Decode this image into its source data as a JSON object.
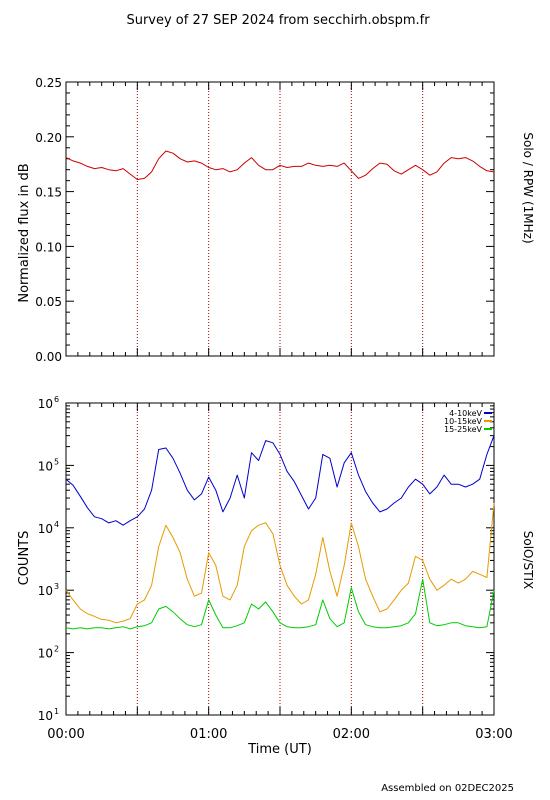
{
  "title": "Survey of 27 SEP 2024 from secchirh.obspm.fr",
  "footer": "Assembled on 02DEC2025",
  "chart_data": [
    {
      "type": "line",
      "ylabel": "Normalized flux in dB",
      "right_label": "Solo / RPW (1MHz)",
      "ylim": [
        0,
        0.25
      ],
      "yticks": [
        "0.00",
        "0.05",
        "0.10",
        "0.15",
        "0.20",
        "0.25"
      ],
      "ytick_values": [
        0,
        0.05,
        0.1,
        0.15,
        0.2,
        0.25
      ],
      "xlim_min": [
        0,
        180
      ],
      "vlines_min": [
        30,
        60,
        90,
        120,
        150
      ],
      "series": [
        {
          "color": "#cc0000",
          "x": [
            0,
            3,
            6,
            9,
            12,
            15,
            18,
            21,
            24,
            27,
            30,
            33,
            36,
            39,
            42,
            45,
            48,
            51,
            54,
            57,
            60,
            63,
            66,
            69,
            72,
            75,
            78,
            81,
            84,
            87,
            90,
            93,
            96,
            99,
            102,
            105,
            108,
            111,
            114,
            117,
            120,
            123,
            126,
            129,
            132,
            135,
            138,
            141,
            144,
            147,
            150,
            153,
            156,
            159,
            162,
            165,
            168,
            171,
            174,
            177,
            180
          ],
          "values": [
            0.181,
            0.178,
            0.176,
            0.173,
            0.171,
            0.172,
            0.17,
            0.169,
            0.171,
            0.166,
            0.161,
            0.162,
            0.168,
            0.18,
            0.187,
            0.185,
            0.18,
            0.177,
            0.178,
            0.176,
            0.172,
            0.17,
            0.171,
            0.168,
            0.17,
            0.176,
            0.181,
            0.174,
            0.17,
            0.17,
            0.174,
            0.172,
            0.173,
            0.173,
            0.176,
            0.174,
            0.173,
            0.174,
            0.173,
            0.176,
            0.169,
            0.162,
            0.165,
            0.171,
            0.176,
            0.175,
            0.169,
            0.166,
            0.17,
            0.174,
            0.17,
            0.165,
            0.168,
            0.176,
            0.181,
            0.18,
            0.181,
            0.178,
            0.173,
            0.169,
            0.168
          ]
        }
      ]
    },
    {
      "type": "line",
      "ylabel": "COUNTS",
      "right_label": "SolO/STIX",
      "xlabel": "Time (UT)",
      "yscale": "log",
      "ylim": [
        10,
        1000000
      ],
      "yticks": [
        "10",
        "10",
        "10",
        "10",
        "10",
        "10"
      ],
      "ytick_exponents": [
        "1",
        "2",
        "3",
        "4",
        "5",
        "6"
      ],
      "xticks": [
        "00:00",
        "01:00",
        "02:00",
        "03:00"
      ],
      "xtick_values_min": [
        0,
        60,
        120,
        180
      ],
      "xlim_min": [
        0,
        180
      ],
      "vlines_min": [
        30,
        60,
        90,
        120,
        150
      ],
      "series": [
        {
          "name": "4-10keV",
          "color": "#0000cc",
          "x": [
            0,
            3,
            6,
            9,
            12,
            15,
            18,
            21,
            24,
            27,
            30,
            33,
            36,
            39,
            42,
            45,
            48,
            51,
            54,
            57,
            60,
            63,
            66,
            69,
            72,
            75,
            78,
            81,
            84,
            87,
            90,
            93,
            96,
            99,
            102,
            105,
            108,
            111,
            114,
            117,
            120,
            123,
            126,
            129,
            132,
            135,
            138,
            141,
            144,
            147,
            150,
            153,
            156,
            159,
            162,
            165,
            168,
            171,
            174,
            177,
            180
          ],
          "values": [
            60000,
            48000,
            32000,
            21000,
            15000,
            14000,
            12000,
            13000,
            11000,
            13000,
            15000,
            20000,
            40000,
            180000,
            190000,
            130000,
            75000,
            40000,
            28000,
            35000,
            65000,
            40000,
            18000,
            30000,
            70000,
            30000,
            160000,
            120000,
            250000,
            230000,
            150000,
            80000,
            55000,
            33000,
            20000,
            30000,
            150000,
            130000,
            45000,
            110000,
            160000,
            70000,
            38000,
            25000,
            18000,
            20000,
            25000,
            30000,
            45000,
            60000,
            50000,
            35000,
            45000,
            70000,
            50000,
            50000,
            45000,
            50000,
            60000,
            150000,
            300000
          ]
        },
        {
          "name": "10-15keV",
          "color": "#e69a00",
          "x": [
            0,
            3,
            6,
            9,
            12,
            15,
            18,
            21,
            24,
            27,
            30,
            33,
            36,
            39,
            42,
            45,
            48,
            51,
            54,
            57,
            60,
            63,
            66,
            69,
            72,
            75,
            78,
            81,
            84,
            87,
            90,
            93,
            96,
            99,
            102,
            105,
            108,
            111,
            114,
            117,
            120,
            123,
            126,
            129,
            132,
            135,
            138,
            141,
            144,
            147,
            150,
            153,
            156,
            159,
            162,
            165,
            168,
            171,
            174,
            177,
            180
          ],
          "values": [
            1000,
            700,
            500,
            420,
            380,
            340,
            330,
            300,
            320,
            350,
            600,
            700,
            1200,
            5000,
            11000,
            7000,
            4000,
            1500,
            800,
            900,
            4000,
            2500,
            800,
            700,
            1200,
            5000,
            9000,
            11000,
            12000,
            8000,
            2500,
            1200,
            800,
            600,
            700,
            1800,
            7000,
            2000,
            800,
            2500,
            12000,
            5000,
            1500,
            800,
            450,
            500,
            700,
            1000,
            1300,
            3500,
            3000,
            1500,
            1000,
            1200,
            1500,
            1300,
            1500,
            2000,
            1800,
            1600,
            25000
          ]
        },
        {
          "name": "15-25keV",
          "color": "#00cc00",
          "x": [
            0,
            3,
            6,
            9,
            12,
            15,
            18,
            21,
            24,
            27,
            30,
            33,
            36,
            39,
            42,
            45,
            48,
            51,
            54,
            57,
            60,
            63,
            66,
            69,
            72,
            75,
            78,
            81,
            84,
            87,
            90,
            93,
            96,
            99,
            102,
            105,
            108,
            111,
            114,
            117,
            120,
            123,
            126,
            129,
            132,
            135,
            138,
            141,
            144,
            147,
            150,
            153,
            156,
            159,
            162,
            165,
            168,
            171,
            174,
            177,
            180
          ],
          "values": [
            250,
            240,
            250,
            240,
            250,
            250,
            240,
            250,
            260,
            240,
            260,
            270,
            300,
            500,
            550,
            450,
            350,
            280,
            260,
            280,
            700,
            400,
            250,
            250,
            270,
            300,
            600,
            500,
            650,
            450,
            300,
            260,
            250,
            250,
            260,
            280,
            700,
            350,
            260,
            300,
            1100,
            450,
            280,
            260,
            250,
            250,
            260,
            270,
            300,
            420,
            1500,
            300,
            270,
            280,
            300,
            300,
            270,
            260,
            250,
            260,
            1000
          ]
        }
      ]
    }
  ]
}
